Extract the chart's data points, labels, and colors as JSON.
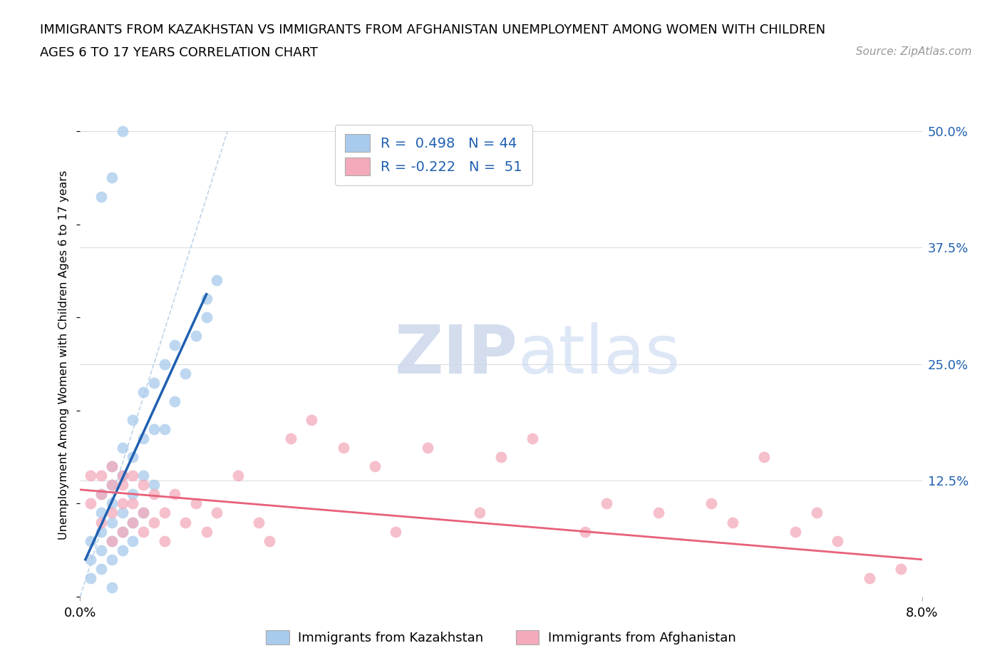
{
  "title_line1": "IMMIGRANTS FROM KAZAKHSTAN VS IMMIGRANTS FROM AFGHANISTAN UNEMPLOYMENT AMONG WOMEN WITH CHILDREN",
  "title_line2": "AGES 6 TO 17 YEARS CORRELATION CHART",
  "source_text": "Source: ZipAtlas.com",
  "ylabel": "Unemployment Among Women with Children Ages 6 to 17 years",
  "xlim": [
    0.0,
    0.08
  ],
  "ylim": [
    0.0,
    0.52
  ],
  "xtick_labels": [
    "0.0%",
    "8.0%"
  ],
  "xtick_positions": [
    0.0,
    0.08
  ],
  "ytick_labels": [
    "12.5%",
    "25.0%",
    "37.5%",
    "50.0%"
  ],
  "ytick_positions": [
    0.125,
    0.25,
    0.375,
    0.5
  ],
  "kazakhstan_color": "#A8CAEC",
  "afghanistan_color": "#F4AABB",
  "kazakhstan_line_color": "#2060B0",
  "afghanistan_line_color": "#E8607A",
  "dashed_line_color": "#B8D0E8",
  "legend_kazakhstan_label": "Immigrants from Kazakhstan",
  "legend_afghanistan_label": "Immigrants from Afghanistan",
  "R_kazakhstan": "0.498",
  "N_kazakhstan": "44",
  "R_afghanistan": "-0.222",
  "N_afghanistan": "51",
  "kaz_x": [
    0.001,
    0.001,
    0.001,
    0.002,
    0.002,
    0.002,
    0.002,
    0.002,
    0.003,
    0.003,
    0.003,
    0.003,
    0.003,
    0.003,
    0.004,
    0.004,
    0.004,
    0.004,
    0.004,
    0.005,
    0.005,
    0.005,
    0.005,
    0.005,
    0.006,
    0.006,
    0.006,
    0.006,
    0.007,
    0.007,
    0.007,
    0.008,
    0.008,
    0.009,
    0.009,
    0.01,
    0.011,
    0.012,
    0.012,
    0.013,
    0.002,
    0.003,
    0.004,
    0.003
  ],
  "kaz_y": [
    0.02,
    0.04,
    0.06,
    0.03,
    0.05,
    0.07,
    0.09,
    0.11,
    0.04,
    0.06,
    0.08,
    0.1,
    0.12,
    0.14,
    0.05,
    0.07,
    0.09,
    0.13,
    0.16,
    0.06,
    0.08,
    0.11,
    0.15,
    0.19,
    0.09,
    0.13,
    0.17,
    0.22,
    0.12,
    0.18,
    0.23,
    0.18,
    0.25,
    0.21,
    0.27,
    0.24,
    0.28,
    0.3,
    0.32,
    0.34,
    0.43,
    0.45,
    0.5,
    0.01
  ],
  "afg_x": [
    0.001,
    0.001,
    0.002,
    0.002,
    0.002,
    0.003,
    0.003,
    0.003,
    0.003,
    0.004,
    0.004,
    0.004,
    0.004,
    0.005,
    0.005,
    0.005,
    0.006,
    0.006,
    0.006,
    0.007,
    0.007,
    0.008,
    0.008,
    0.009,
    0.01,
    0.011,
    0.012,
    0.013,
    0.015,
    0.017,
    0.018,
    0.02,
    0.022,
    0.025,
    0.028,
    0.03,
    0.033,
    0.038,
    0.04,
    0.043,
    0.048,
    0.05,
    0.055,
    0.06,
    0.062,
    0.065,
    0.068,
    0.07,
    0.072,
    0.075,
    0.078
  ],
  "afg_y": [
    0.1,
    0.13,
    0.08,
    0.11,
    0.13,
    0.06,
    0.09,
    0.12,
    0.14,
    0.07,
    0.1,
    0.12,
    0.13,
    0.08,
    0.1,
    0.13,
    0.07,
    0.09,
    0.12,
    0.08,
    0.11,
    0.06,
    0.09,
    0.11,
    0.08,
    0.1,
    0.07,
    0.09,
    0.13,
    0.08,
    0.06,
    0.17,
    0.19,
    0.16,
    0.14,
    0.07,
    0.16,
    0.09,
    0.15,
    0.17,
    0.07,
    0.1,
    0.09,
    0.1,
    0.08,
    0.15,
    0.07,
    0.09,
    0.06,
    0.02,
    0.03
  ],
  "kaz_line_x": [
    0.0005,
    0.012
  ],
  "kaz_line_y": [
    0.04,
    0.325
  ],
  "afg_line_x": [
    0.0,
    0.08
  ],
  "afg_line_y": [
    0.115,
    0.04
  ],
  "dash_line_x": [
    0.0,
    0.014
  ],
  "dash_line_y": [
    0.0,
    0.5
  ]
}
